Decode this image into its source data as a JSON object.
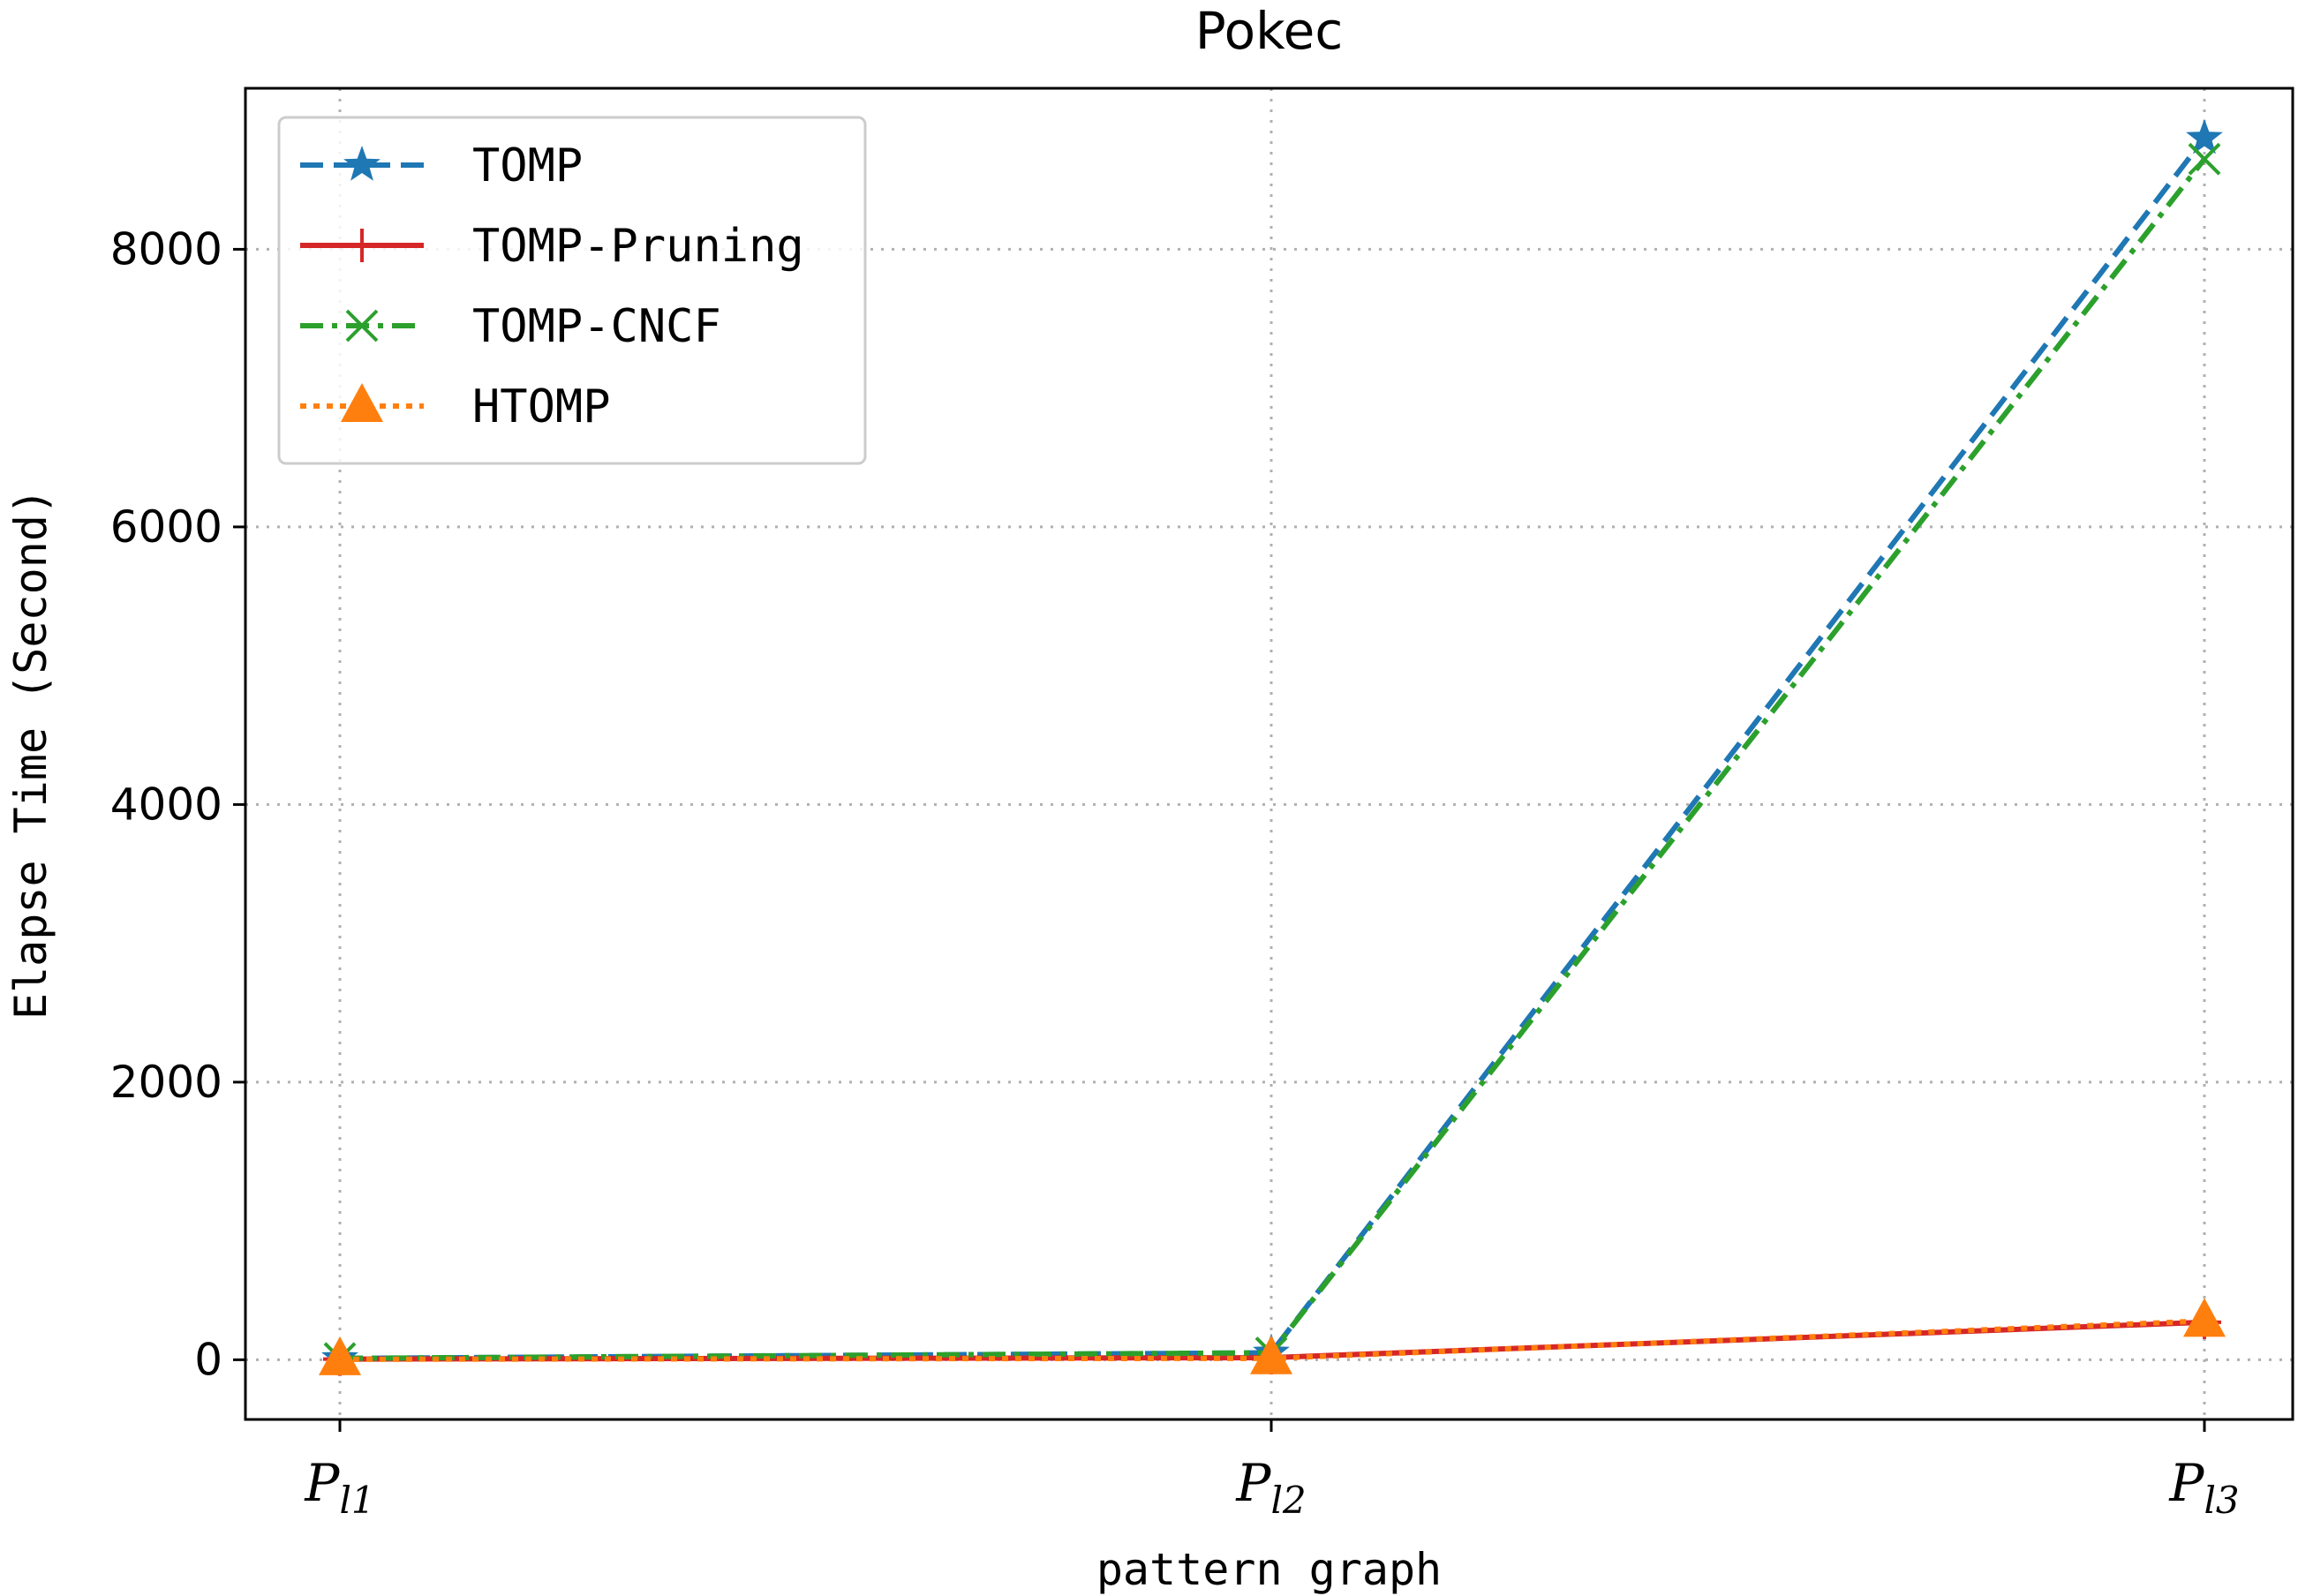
{
  "chart_data": {
    "type": "line",
    "title": "Pokec",
    "xlabel": "pattern graph",
    "ylabel": "Elapse Time (Second)",
    "categories": [
      {
        "base": "P",
        "sub": "l1"
      },
      {
        "base": "P",
        "sub": "l2"
      },
      {
        "base": "P",
        "sub": "l3"
      }
    ],
    "ylim": [
      -430,
      9160
    ],
    "yticks": [
      0,
      2000,
      4000,
      6000,
      8000
    ],
    "grid": true,
    "legend_position": "upper-left",
    "series": [
      {
        "name": "TOMP",
        "color": "#1f77b4",
        "dash": "dashed",
        "marker": "star",
        "values": [
          10,
          50,
          8800
        ]
      },
      {
        "name": "TOMP-Pruning",
        "color": "#d62728",
        "dash": "solid",
        "marker": "plus",
        "values": [
          5,
          15,
          270
        ]
      },
      {
        "name": "TOMP-CNCF",
        "color": "#2ca02c",
        "dash": "dashdot",
        "marker": "x",
        "values": [
          10,
          50,
          8650
        ]
      },
      {
        "name": "HTOMP",
        "color": "#ff7f0e",
        "dash": "dotted",
        "marker": "triangle",
        "values": [
          3,
          10,
          280
        ]
      }
    ]
  }
}
